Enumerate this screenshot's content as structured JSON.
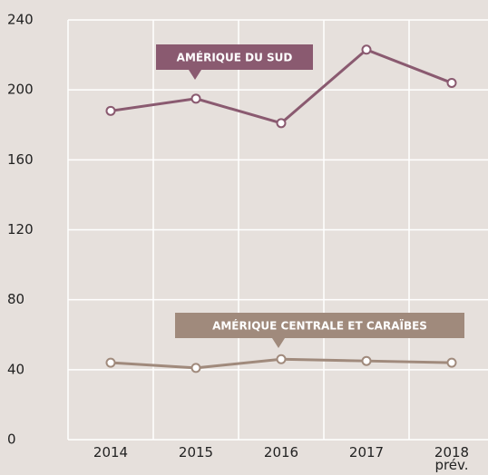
{
  "chart_data": {
    "type": "line",
    "categories": [
      "2014",
      "2015",
      "2016",
      "2017",
      "2018 prév."
    ],
    "series": [
      {
        "name": "AMÉRIQUE DU SUD",
        "color": "#8a5a70",
        "values": [
          188,
          195,
          181,
          223,
          204
        ]
      },
      {
        "name": "AMÉRIQUE CENTRALE ET CARAÏBES",
        "color": "#a08a7c",
        "values": [
          44,
          41,
          46,
          45,
          44
        ]
      }
    ],
    "ylim": [
      0,
      240
    ],
    "yticks": [
      0,
      40,
      80,
      120,
      160,
      200,
      240
    ],
    "grid": true
  }
}
